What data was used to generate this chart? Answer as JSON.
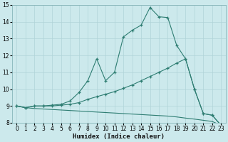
{
  "xlabel": "Humidex (Indice chaleur)",
  "bg_color": "#cce9ec",
  "grid_color": "#b0d4d8",
  "line_color": "#2e7d72",
  "xlim": [
    -0.5,
    23.5
  ],
  "ylim": [
    8,
    15
  ],
  "xticks": [
    0,
    1,
    2,
    3,
    4,
    5,
    6,
    7,
    8,
    9,
    10,
    11,
    12,
    13,
    14,
    15,
    16,
    17,
    18,
    19,
    20,
    21,
    22,
    23
  ],
  "yticks": [
    8,
    9,
    10,
    11,
    12,
    13,
    14,
    15
  ],
  "line1_x": [
    0,
    1,
    2,
    3,
    4,
    5,
    6,
    7,
    8,
    9,
    10,
    11,
    12,
    13,
    14,
    15,
    16,
    17,
    18,
    19,
    20,
    21,
    22,
    23
  ],
  "line1_y": [
    9.0,
    8.9,
    9.0,
    9.0,
    9.05,
    9.1,
    9.3,
    9.8,
    10.5,
    11.8,
    10.5,
    11.0,
    13.1,
    13.5,
    13.8,
    14.85,
    14.3,
    14.25,
    12.6,
    11.8,
    10.0,
    8.55,
    8.45,
    7.85
  ],
  "line2_x": [
    0,
    1,
    2,
    3,
    4,
    5,
    6,
    7,
    8,
    9,
    10,
    11,
    12,
    13,
    14,
    15,
    16,
    17,
    18,
    19,
    20,
    21,
    22,
    23
  ],
  "line2_y": [
    9.0,
    8.9,
    9.0,
    9.0,
    9.0,
    9.05,
    9.1,
    9.2,
    9.4,
    9.55,
    9.7,
    9.85,
    10.05,
    10.25,
    10.5,
    10.75,
    11.0,
    11.25,
    11.55,
    11.8,
    10.0,
    8.55,
    8.45,
    7.85
  ],
  "line3_x": [
    0,
    1,
    2,
    3,
    4,
    5,
    6,
    7,
    8,
    9,
    10,
    11,
    12,
    13,
    14,
    15,
    16,
    17,
    18,
    19,
    20,
    21,
    22,
    23
  ],
  "line3_y": [
    9.0,
    8.9,
    8.85,
    8.82,
    8.79,
    8.76,
    8.73,
    8.7,
    8.67,
    8.64,
    8.61,
    8.58,
    8.55,
    8.52,
    8.49,
    8.46,
    8.43,
    8.4,
    8.35,
    8.28,
    8.22,
    8.15,
    8.08,
    7.85
  ]
}
